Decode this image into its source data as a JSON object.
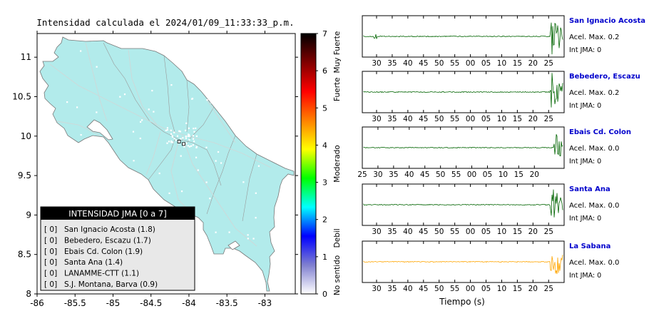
{
  "map": {
    "title": "Intensidad calculada el 2024/01/09_11:33:33_p.m.",
    "lat_ticks": [
      "11",
      "10.5",
      "10",
      "9.5",
      "9",
      "8.5",
      "8"
    ],
    "lon_ticks": [
      "-86",
      "-85.5",
      "-85",
      "-84.5",
      "-84",
      "-83.5",
      "-83"
    ],
    "lat_range": [
      8,
      11.3
    ],
    "lon_range": [
      -86,
      -82.6
    ],
    "land_color": "#b2ebeb",
    "stations": [
      {
        "lon": -84.07,
        "lat": 9.9
      },
      {
        "lon": -84.13,
        "lat": 9.93
      }
    ]
  },
  "legend": {
    "title": "INTENSIDAD JMA [0 a 7]",
    "items": [
      {
        "value": "[ 0]",
        "label": "San Ignacio Acosta (1.8)"
      },
      {
        "value": "[ 0]",
        "label": "Bebedero, Escazu (1.7)"
      },
      {
        "value": "[ 0]",
        "label": "Ebais Cd. Colon (1.9)"
      },
      {
        "value": "[ 0]",
        "label": "Santa Ana (1.4)"
      },
      {
        "value": "[ 0]",
        "label": "LANAMME-CTT (1.1)"
      },
      {
        "value": "[ 0]",
        "label": "S.J. Montana, Barva (0.9)"
      }
    ]
  },
  "colorbar": {
    "ticks": [
      "0",
      "1",
      "2",
      "3",
      "4",
      "5",
      "6",
      "7"
    ],
    "categories": [
      "No sentido",
      "Debil",
      "Moderado",
      "Fuerte",
      "Muy Fuerte"
    ],
    "stops": [
      "#ffffff",
      "#7f7fd0",
      "#0000ff",
      "#00ffff",
      "#00ff00",
      "#ffff00",
      "#ff8000",
      "#ff0000",
      "#800000",
      "#000000"
    ]
  },
  "traces": [
    {
      "name": "San Ignacio Acosta",
      "accel": "Acel. Max. 0.2",
      "int": "Int JMA: 0",
      "color": "#006400",
      "ticks": [
        "30",
        "35",
        "40",
        "45",
        "50",
        "55",
        "00",
        "05",
        "10",
        "15",
        "20",
        "25"
      ],
      "tick_start": 27,
      "onset": 0.93
    },
    {
      "name": "Bebedero, Escazu",
      "accel": "Acel. Max. 0.2",
      "int": "Int JMA: 0",
      "color": "#006400",
      "ticks": [
        "30",
        "35",
        "40",
        "45",
        "50",
        "55",
        "00",
        "05",
        "10",
        "15",
        "20",
        "25"
      ],
      "tick_start": 27,
      "onset": 0.93
    },
    {
      "name": "Ebais Cd. Colon",
      "accel": "Acel. Max. 0.0",
      "int": "Int JMA: 0",
      "color": "#006400",
      "ticks": [
        "25",
        "30",
        "35",
        "40",
        "45",
        "50",
        "55",
        "00",
        "05",
        "10",
        "15",
        "20"
      ],
      "tick_start": 24.4,
      "onset": 0.95
    },
    {
      "name": "Santa Ana",
      "accel": "Acel. Max. 0.0",
      "int": "Int JMA: 0",
      "color": "#006400",
      "ticks": [
        "30",
        "35",
        "40",
        "45",
        "50",
        "55",
        "00",
        "05",
        "10",
        "15",
        "20",
        "25"
      ],
      "tick_start": 27.5,
      "onset": 0.93
    },
    {
      "name": "La Sabana",
      "accel": "Acel. Max. 0.0",
      "int": "Int JMA: 0",
      "color": "#ffa500",
      "ticks": [
        "30",
        "35",
        "40",
        "45",
        "50",
        "55",
        "00",
        "05",
        "10",
        "15",
        "20",
        "25"
      ],
      "tick_start": 27.5,
      "onset": 0.93
    }
  ],
  "xlabel": "Tiempo (s)",
  "name_color": "#0000cc"
}
